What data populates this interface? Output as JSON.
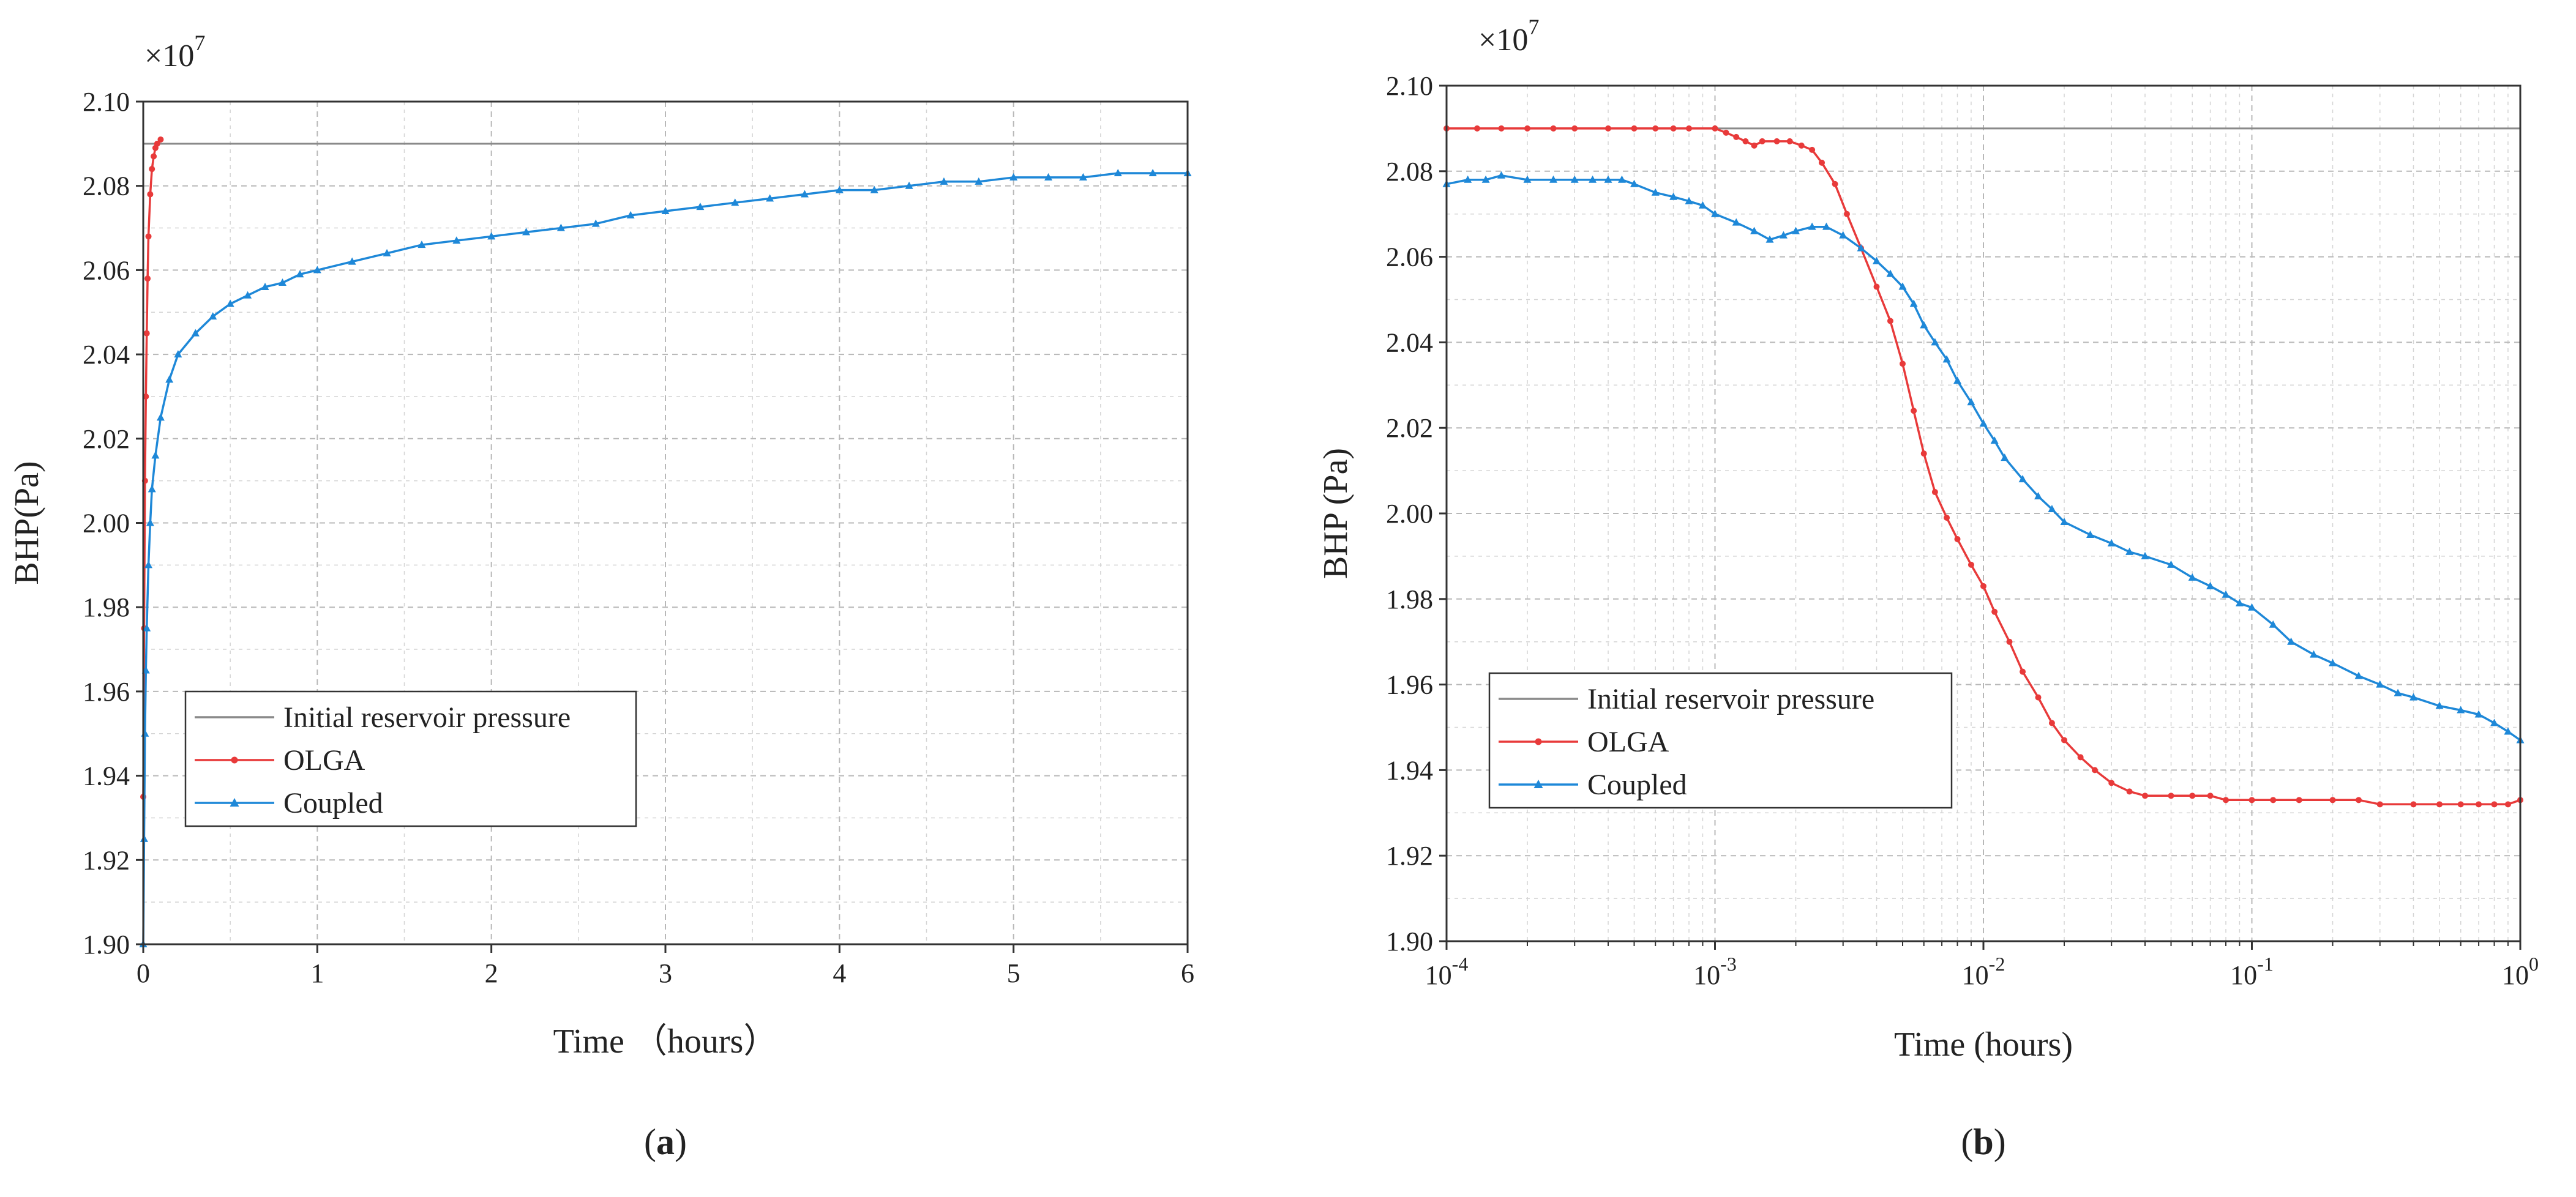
{
  "chart_data": [
    {
      "panel_label": "a",
      "type": "line",
      "xscale": "linear",
      "xlabel": "Time （hours）",
      "ylabel": "BHP(Pa)",
      "y_multiplier": "×10",
      "y_multiplier_exp": "7",
      "xlim": [
        0,
        6
      ],
      "ylim": [
        1.9,
        2.1
      ],
      "xticks": [
        0,
        1,
        2,
        3,
        4,
        5,
        6
      ],
      "xtick_labels": [
        "0",
        "1",
        "2",
        "3",
        "4",
        "5",
        "6"
      ],
      "yticks": [
        1.9,
        1.92,
        1.94,
        1.96,
        1.98,
        2.0,
        2.02,
        2.04,
        2.06,
        2.08,
        2.1
      ],
      "ytick_labels": [
        "1.90",
        "1.92",
        "1.94",
        "1.96",
        "1.98",
        "2.00",
        "2.02",
        "2.04",
        "2.06",
        "2.08",
        "2.10"
      ],
      "legend_position": "lower-left",
      "series": [
        {
          "name": "Initial reservoir pressure",
          "color": "#8a8a8a",
          "marker": "none",
          "x": [
            0,
            6
          ],
          "y": [
            2.09,
            2.09
          ]
        },
        {
          "name": "OLGA",
          "color": "#e83a3a",
          "marker": "dot",
          "x": [
            0,
            0.005,
            0.01,
            0.015,
            0.02,
            0.025,
            0.03,
            0.04,
            0.05,
            0.06,
            0.07,
            0.08,
            0.1
          ],
          "y": [
            1.935,
            1.975,
            2.01,
            2.03,
            2.045,
            2.058,
            2.068,
            2.078,
            2.084,
            2.087,
            2.089,
            2.09,
            2.091
          ]
        },
        {
          "name": "Coupled",
          "color": "#1e88d8",
          "marker": "triangle",
          "x": [
            0,
            0.005,
            0.01,
            0.015,
            0.02,
            0.03,
            0.04,
            0.05,
            0.07,
            0.1,
            0.15,
            0.2,
            0.3,
            0.4,
            0.5,
            0.6,
            0.7,
            0.8,
            0.9,
            1.0,
            1.2,
            1.4,
            1.6,
            1.8,
            2.0,
            2.2,
            2.4,
            2.6,
            2.8,
            3.0,
            3.2,
            3.4,
            3.6,
            3.8,
            4.0,
            4.2,
            4.4,
            4.6,
            4.8,
            5.0,
            5.2,
            5.4,
            5.6,
            5.8,
            6.0
          ],
          "y": [
            1.9,
            1.925,
            1.95,
            1.965,
            1.975,
            1.99,
            2.0,
            2.008,
            2.016,
            2.025,
            2.034,
            2.04,
            2.045,
            2.049,
            2.052,
            2.054,
            2.056,
            2.057,
            2.059,
            2.06,
            2.062,
            2.064,
            2.066,
            2.067,
            2.068,
            2.069,
            2.07,
            2.071,
            2.073,
            2.074,
            2.075,
            2.076,
            2.077,
            2.078,
            2.079,
            2.079,
            2.08,
            2.081,
            2.081,
            2.082,
            2.082,
            2.082,
            2.083,
            2.083,
            2.083
          ]
        }
      ]
    },
    {
      "panel_label": "b",
      "type": "line",
      "xscale": "log",
      "xlabel": "Time (hours)",
      "ylabel": "BHP (Pa)",
      "y_multiplier": "×10",
      "y_multiplier_exp": "7",
      "xlim": [
        0.0001,
        1
      ],
      "ylim": [
        1.9,
        2.1
      ],
      "xticks": [
        0.0001,
        0.001,
        0.01,
        0.1,
        1
      ],
      "xtick_labels": [
        [
          "10",
          "-4"
        ],
        [
          "10",
          "-3"
        ],
        [
          "10",
          "-2"
        ],
        [
          "10",
          "-1"
        ],
        [
          "10",
          "0"
        ]
      ],
      "yticks": [
        1.9,
        1.92,
        1.94,
        1.96,
        1.98,
        2.0,
        2.02,
        2.04,
        2.06,
        2.08,
        2.1
      ],
      "ytick_labels": [
        "1.90",
        "1.92",
        "1.94",
        "1.96",
        "1.98",
        "2.00",
        "2.02",
        "2.04",
        "2.06",
        "2.08",
        "2.10"
      ],
      "legend_position": "lower-left",
      "series": [
        {
          "name": "Initial reservoir pressure",
          "color": "#8a8a8a",
          "marker": "none",
          "x": [
            0.0001,
            1
          ],
          "y": [
            2.09,
            2.09
          ]
        },
        {
          "name": "OLGA",
          "color": "#e83a3a",
          "marker": "dot",
          "x": [
            0.0001,
            0.00013,
            0.00016,
            0.0002,
            0.00025,
            0.0003,
            0.0004,
            0.0005,
            0.0006,
            0.0007,
            0.0008,
            0.001,
            0.0011,
            0.0012,
            0.0013,
            0.0014,
            0.0015,
            0.0017,
            0.0019,
            0.0021,
            0.0023,
            0.0025,
            0.0028,
            0.0031,
            0.0035,
            0.004,
            0.0045,
            0.005,
            0.0055,
            0.006,
            0.0066,
            0.0073,
            0.008,
            0.009,
            0.01,
            0.011,
            0.0125,
            0.014,
            0.016,
            0.018,
            0.02,
            0.023,
            0.026,
            0.03,
            0.035,
            0.04,
            0.05,
            0.06,
            0.07,
            0.08,
            0.1,
            0.12,
            0.15,
            0.2,
            0.25,
            0.3,
            0.4,
            0.5,
            0.6,
            0.7,
            0.8,
            0.9,
            1.0
          ],
          "y": [
            2.09,
            2.09,
            2.09,
            2.09,
            2.09,
            2.09,
            2.09,
            2.09,
            2.09,
            2.09,
            2.09,
            2.09,
            2.089,
            2.088,
            2.087,
            2.086,
            2.087,
            2.087,
            2.087,
            2.086,
            2.085,
            2.082,
            2.077,
            2.07,
            2.062,
            2.053,
            2.045,
            2.035,
            2.024,
            2.014,
            2.005,
            1.999,
            1.994,
            1.988,
            1.983,
            1.977,
            1.97,
            1.963,
            1.957,
            1.951,
            1.947,
            1.943,
            1.94,
            1.937,
            1.935,
            1.934,
            1.934,
            1.934,
            1.934,
            1.933,
            1.933,
            1.933,
            1.933,
            1.933,
            1.933,
            1.932,
            1.932,
            1.932,
            1.932,
            1.932,
            1.932,
            1.932,
            1.933
          ]
        },
        {
          "name": "Coupled",
          "color": "#1e88d8",
          "marker": "triangle",
          "x": [
            0.0001,
            0.00012,
            0.00014,
            0.00016,
            0.0002,
            0.00025,
            0.0003,
            0.00035,
            0.0004,
            0.00045,
            0.0005,
            0.0006,
            0.0007,
            0.0008,
            0.0009,
            0.001,
            0.0012,
            0.0014,
            0.0016,
            0.0018,
            0.002,
            0.0023,
            0.0026,
            0.003,
            0.0035,
            0.004,
            0.0045,
            0.005,
            0.0055,
            0.006,
            0.0066,
            0.0073,
            0.008,
            0.009,
            0.01,
            0.011,
            0.012,
            0.014,
            0.016,
            0.018,
            0.02,
            0.025,
            0.03,
            0.035,
            0.04,
            0.05,
            0.06,
            0.07,
            0.08,
            0.09,
            0.1,
            0.12,
            0.14,
            0.17,
            0.2,
            0.25,
            0.3,
            0.35,
            0.4,
            0.5,
            0.6,
            0.7,
            0.8,
            0.9,
            1.0
          ],
          "y": [
            2.077,
            2.078,
            2.078,
            2.079,
            2.078,
            2.078,
            2.078,
            2.078,
            2.078,
            2.078,
            2.077,
            2.075,
            2.074,
            2.073,
            2.072,
            2.07,
            2.068,
            2.066,
            2.064,
            2.065,
            2.066,
            2.067,
            2.067,
            2.065,
            2.062,
            2.059,
            2.056,
            2.053,
            2.049,
            2.044,
            2.04,
            2.036,
            2.031,
            2.026,
            2.021,
            2.017,
            2.013,
            2.008,
            2.004,
            2.001,
            1.998,
            1.995,
            1.993,
            1.991,
            1.99,
            1.988,
            1.985,
            1.983,
            1.981,
            1.979,
            1.978,
            1.974,
            1.97,
            1.967,
            1.965,
            1.962,
            1.96,
            1.958,
            1.957,
            1.955,
            1.954,
            1.953,
            1.951,
            1.949,
            1.947
          ]
        }
      ]
    }
  ]
}
